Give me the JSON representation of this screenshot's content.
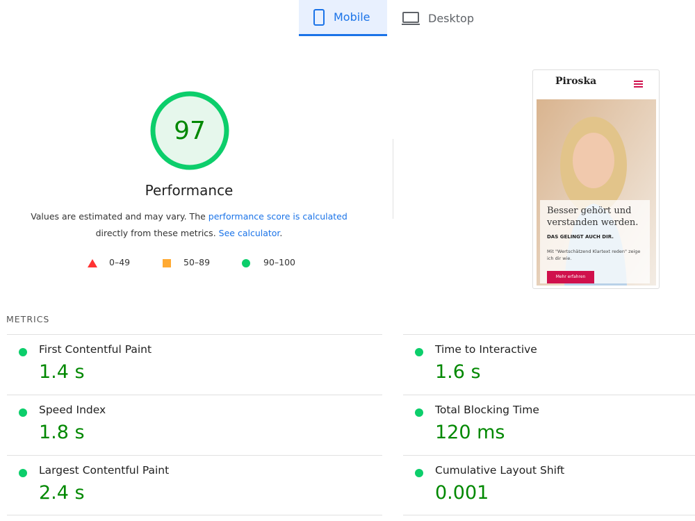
{
  "tabs": {
    "mobile": "Mobile",
    "desktop": "Desktop"
  },
  "score": {
    "value": "97",
    "label": "Performance"
  },
  "description": {
    "text1": "Values are estimated and may vary. The",
    "link1": "performance score is calculated",
    "text2": "directly from these metrics.",
    "link2": "See calculator",
    "end": "."
  },
  "legend": {
    "fail": "0–49",
    "average": "50–89",
    "pass": "90–100"
  },
  "preview": {
    "brand": "Piroska",
    "headline": "Besser gehört und verstanden werden.",
    "subline": "DAS GELINGT AUCH DIR.",
    "body": "Mit \"Wertschätzend Klartext reden\" zeige ich dir wie.",
    "button": "Mehr erfahren"
  },
  "metrics": {
    "heading": "METRICS",
    "items": [
      {
        "name": "First Contentful Paint",
        "value": "1.4 s"
      },
      {
        "name": "Time to Interactive",
        "value": "1.6 s"
      },
      {
        "name": "Speed Index",
        "value": "1.8 s"
      },
      {
        "name": "Total Blocking Time",
        "value": "120 ms"
      },
      {
        "name": "Largest Contentful Paint",
        "value": "2.4 s"
      },
      {
        "name": "Cumulative Layout Shift",
        "value": "0.001"
      }
    ]
  }
}
